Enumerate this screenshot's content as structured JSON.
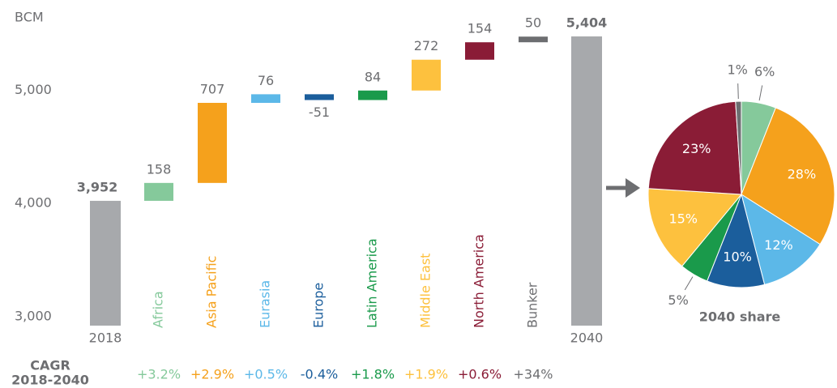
{
  "chart_data": [
    {
      "type": "waterfall",
      "y_label": "BCM",
      "categories": [
        "2018",
        "Africa",
        "Asia Pacific",
        "Eurasia",
        "Europe",
        "Latin America",
        "Middle East",
        "North America",
        "Bunker",
        "2040"
      ],
      "values": [
        3952,
        158,
        707,
        76,
        -51,
        84,
        272,
        154,
        50,
        5404
      ],
      "value_labels": [
        "3,952",
        "158",
        "707",
        "76",
        "-51",
        "84",
        "272",
        "154",
        "50",
        "5,404"
      ],
      "colors": [
        "#a7a9ac",
        "#85c99b",
        "#f5a11c",
        "#5cb8e8",
        "#1b5e9c",
        "#1a9a4b",
        "#fdc13e",
        "#8a1c36",
        "#6d6e71",
        "#a7a9ac"
      ],
      "ylim": [
        2850,
        5500
      ],
      "yticks": [
        {
          "value": 3000,
          "label": "3,000"
        },
        {
          "value": 4000,
          "label": "4,000"
        },
        {
          "value": 5000,
          "label": "5,000"
        }
      ],
      "cagr_title": "CAGR",
      "cagr_period": "2018-2040",
      "cagr": [
        null,
        3.2,
        2.9,
        0.5,
        -0.4,
        1.8,
        1.9,
        0.6,
        34,
        null
      ],
      "cagr_labels": [
        null,
        "+3.2%",
        "+2.9%",
        "+0.5%",
        "-0.4%",
        "+1.8%",
        "+1.9%",
        "+0.6%",
        "+34%",
        null
      ]
    },
    {
      "type": "pie",
      "title": "2040 share",
      "categories": [
        "Africa",
        "Asia Pacific",
        "Eurasia",
        "Europe",
        "Latin America",
        "Middle East",
        "North America",
        "Bunker"
      ],
      "values": [
        6,
        28,
        12,
        10,
        5,
        15,
        23,
        1
      ],
      "value_labels": [
        "6%",
        "28%",
        "12%",
        "10%",
        "5%",
        "15%",
        "23%",
        "1%"
      ],
      "colors": [
        "#85c99b",
        "#f5a11c",
        "#5cb8e8",
        "#1b5e9c",
        "#1a9a4b",
        "#fdc13e",
        "#8a1c36",
        "#6d6e71"
      ]
    }
  ]
}
